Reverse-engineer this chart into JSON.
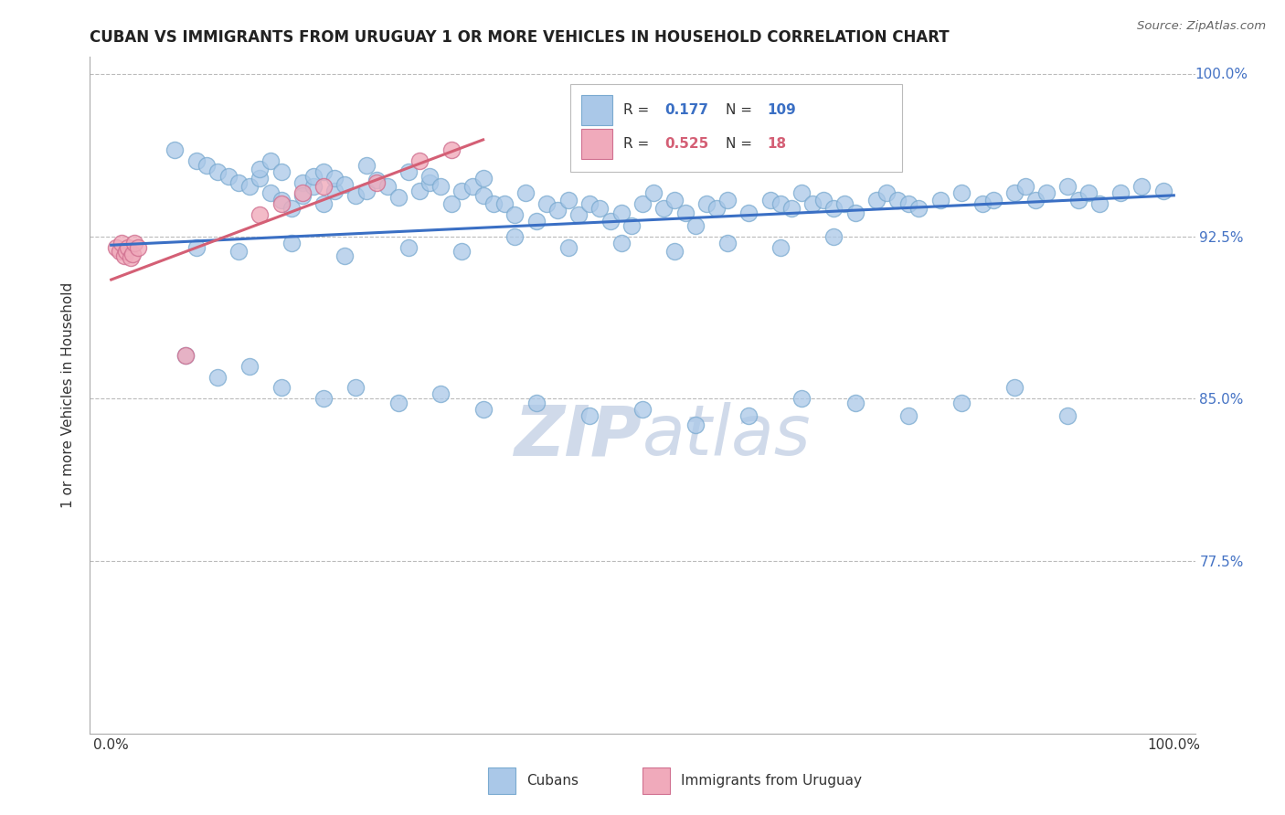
{
  "title": "CUBAN VS IMMIGRANTS FROM URUGUAY 1 OR MORE VEHICLES IN HOUSEHOLD CORRELATION CHART",
  "source": "Source: ZipAtlas.com",
  "ylabel": "1 or more Vehicles in Household",
  "ytick_values": [
    0.925,
    0.85,
    0.775
  ],
  "ytick_labels": [
    "92.5%",
    "85.0%",
    "77.5%"
  ],
  "ymax_label": "100.0%",
  "ymax": 1.008,
  "ymin": 0.695,
  "xmin": -0.02,
  "xmax": 1.02,
  "watermark_zip": "ZIP",
  "watermark_atlas": "atlas",
  "blue_line_color": "#3a6fc4",
  "pink_line_color": "#d45f75",
  "dot_blue_fill": "#aac8e8",
  "dot_blue_edge": "#7aaad0",
  "dot_pink_fill": "#f0aabb",
  "dot_pink_edge": "#d07090",
  "background_color": "#ffffff",
  "grid_color": "#bbbbbb",
  "title_color": "#222222",
  "source_color": "#666666",
  "right_label_color": "#4472c4",
  "watermark_color": "#d0daea",
  "legend_blue_R": "0.177",
  "legend_blue_N": "109",
  "legend_pink_R": "0.525",
  "legend_pink_N": "18",
  "legend_label_cubans": "Cubans",
  "legend_label_uruguay": "Immigrants from Uruguay"
}
